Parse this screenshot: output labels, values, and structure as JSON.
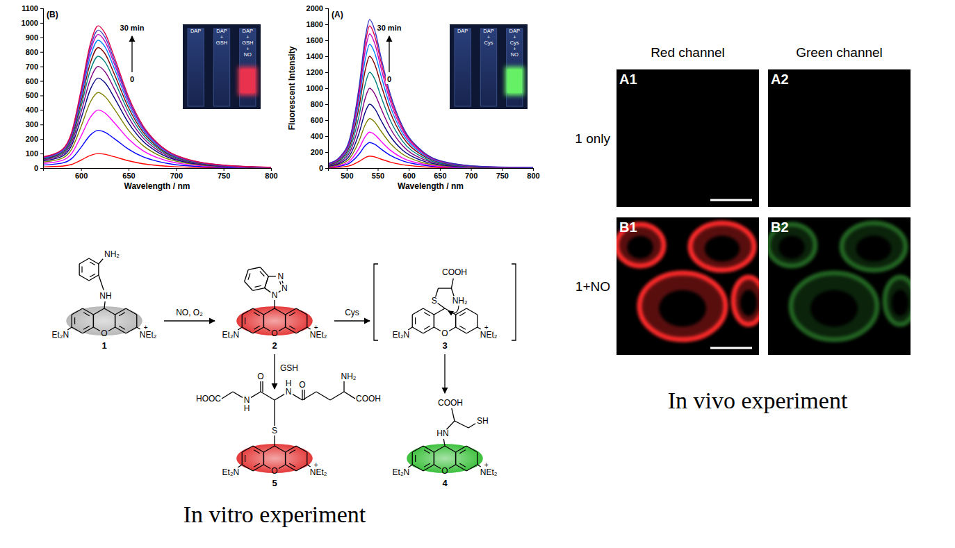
{
  "chart_data": [
    {
      "type": "line",
      "xlabel": "Wavelength / nm",
      "annotations": [
        "(B)",
        "30 min",
        "0"
      ],
      "x": [
        560,
        580,
        590,
        600,
        610,
        618,
        625,
        635,
        650,
        665,
        680,
        700,
        750,
        800
      ],
      "series": [
        {
          "color": "#ff0000",
          "values": [
            8,
            13,
            25,
            55,
            88,
            100,
            95,
            78,
            50,
            30,
            18,
            9,
            2,
            1
          ]
        },
        {
          "color": "#0000ff",
          "values": [
            21,
            34,
            65,
            143,
            229,
            260,
            247,
            203,
            130,
            78,
            47,
            23,
            5,
            1
          ]
        },
        {
          "color": "#ff00ff",
          "values": [
            32,
            52,
            100,
            220,
            352,
            400,
            380,
            312,
            200,
            120,
            72,
            36,
            8,
            2
          ]
        },
        {
          "color": "#808000",
          "values": [
            42,
            68,
            130,
            286,
            458,
            520,
            494,
            406,
            260,
            156,
            94,
            47,
            10,
            3
          ]
        },
        {
          "color": "#000080",
          "values": [
            50,
            81,
            155,
            341,
            546,
            620,
            589,
            484,
            310,
            186,
            112,
            56,
            12,
            3
          ]
        },
        {
          "color": "#800080",
          "values": [
            56,
            91,
            175,
            385,
            616,
            700,
            665,
            546,
            350,
            210,
            126,
            63,
            14,
            4
          ]
        },
        {
          "color": "#008080",
          "values": [
            62,
            100,
            193,
            424,
            678,
            770,
            732,
            601,
            385,
            231,
            139,
            69,
            15,
            4
          ]
        },
        {
          "color": "#800000",
          "values": [
            66,
            108,
            208,
            457,
            730,
            830,
            789,
            647,
            415,
            249,
            149,
            75,
            17,
            4
          ]
        },
        {
          "color": "#0080ff",
          "values": [
            70,
            114,
            220,
            484,
            774,
            880,
            836,
            686,
            440,
            264,
            158,
            79,
            18,
            4
          ]
        },
        {
          "color": "#c000c0",
          "values": [
            74,
            120,
            230,
            506,
            810,
            920,
            874,
            718,
            460,
            276,
            166,
            83,
            18,
            5
          ]
        },
        {
          "color": "#4040c0",
          "values": [
            76,
            124,
            238,
            523,
            836,
            950,
            903,
            741,
            475,
            285,
            171,
            86,
            19,
            5
          ]
        },
        {
          "color": "#e0004a",
          "values": [
            78,
            127,
            245,
            539,
            862,
            980,
            931,
            764,
            490,
            294,
            176,
            88,
            20,
            5
          ]
        }
      ],
      "xlim": [
        560,
        800
      ],
      "ylim": [
        0,
        1100
      ],
      "xticks": [
        600,
        650,
        700,
        750,
        800
      ],
      "yticks": [
        0,
        100,
        200,
        300,
        400,
        500,
        600,
        700,
        800,
        900,
        1000,
        1100
      ],
      "inset": {
        "labels": [
          [
            "DAP"
          ],
          [
            "DAP",
            "+",
            "GSH"
          ],
          [
            "DAP",
            "+",
            "GSH",
            "+",
            "NO"
          ]
        ],
        "color": "#e8324e"
      }
    },
    {
      "type": "line",
      "xlabel": "Wavelength / nm",
      "ylabel": "Fluorescent Intensity",
      "annotations": [
        "(A)",
        "30 min",
        "0"
      ],
      "x": [
        470,
        490,
        505,
        520,
        530,
        537,
        545,
        555,
        570,
        590,
        620,
        660,
        720,
        800
      ],
      "series": [
        {
          "color": "#ff0000",
          "values": [
            5,
            12,
            30,
            83,
            132,
            150,
            140,
            113,
            75,
            42,
            18,
            6,
            2,
            0
          ]
        },
        {
          "color": "#0000ff",
          "values": [
            10,
            26,
            64,
            176,
            282,
            320,
            298,
            240,
            160,
            90,
            38,
            13,
            3,
            1
          ]
        },
        {
          "color": "#ff00ff",
          "values": [
            14,
            36,
            90,
            248,
            396,
            450,
            419,
            338,
            225,
            126,
            54,
            18,
            5,
            1
          ]
        },
        {
          "color": "#808000",
          "values": [
            19,
            50,
            124,
            341,
            546,
            620,
            577,
            465,
            310,
            174,
            74,
            25,
            6,
            2
          ]
        },
        {
          "color": "#000080",
          "values": [
            24,
            64,
            160,
            440,
            704,
            800,
            744,
            600,
            400,
            224,
            96,
            32,
            8,
            2
          ]
        },
        {
          "color": "#800080",
          "values": [
            30,
            80,
            200,
            550,
            880,
            1000,
            930,
            750,
            500,
            280,
            120,
            40,
            10,
            3
          ]
        },
        {
          "color": "#008080",
          "values": [
            36,
            96,
            240,
            660,
            1056,
            1200,
            1116,
            900,
            600,
            336,
            144,
            48,
            12,
            4
          ]
        },
        {
          "color": "#800000",
          "values": [
            42,
            112,
            280,
            770,
            1232,
            1400,
            1302,
            1050,
            700,
            392,
            168,
            56,
            14,
            4
          ]
        },
        {
          "color": "#0080ff",
          "values": [
            47,
            124,
            310,
            853,
            1364,
            1550,
            1442,
            1163,
            775,
            434,
            186,
            62,
            16,
            5
          ]
        },
        {
          "color": "#c000c0",
          "values": [
            50,
            134,
            336,
            924,
            1478,
            1680,
            1562,
            1260,
            840,
            470,
            202,
            67,
            17,
            5
          ]
        },
        {
          "color": "#e0004a",
          "values": [
            53,
            142,
            356,
            979,
            1566,
            1780,
            1655,
            1335,
            890,
            498,
            214,
            71,
            18,
            5
          ]
        },
        {
          "color": "#3030c0",
          "values": [
            56,
            149,
            372,
            1023,
            1637,
            1860,
            1730,
            1395,
            930,
            521,
            223,
            74,
            19,
            6
          ]
        }
      ],
      "xlim": [
        470,
        800
      ],
      "ylim": [
        0,
        2000
      ],
      "xticks": [
        500,
        550,
        600,
        650,
        700,
        750,
        800
      ],
      "yticks": [
        0,
        200,
        400,
        600,
        800,
        1000,
        1200,
        1400,
        1600,
        1800,
        2000
      ],
      "inset": {
        "labels": [
          [
            "DAP"
          ],
          [
            "DAP",
            "+",
            "Cys"
          ],
          [
            "DAP",
            "+",
            "Cys",
            "+",
            "NO"
          ]
        ],
        "color": "#66f066"
      }
    }
  ],
  "scheme": {
    "caption": "In vitro experiment",
    "reagents": [
      "NO, O₂",
      "Cys",
      "GSH"
    ],
    "compounds": [
      {
        "label": "1",
        "left": "Et₂N",
        "right": "NEt₂",
        "charge": "+",
        "bridge": "O",
        "color": "#b8b8b8",
        "groups": [
          "NH₂",
          "NH"
        ]
      },
      {
        "label": "2",
        "left": "Et₂N",
        "right": "NEt₂",
        "charge": "+",
        "bridge": "O",
        "color": "#e53a3a",
        "groups": [
          "N",
          "N",
          "N"
        ]
      },
      {
        "label": "3",
        "left": "Et₂N",
        "right": "NEt₂",
        "charge": "+",
        "bridge": "O",
        "groups": [
          "COOH",
          "S",
          "NH₂"
        ]
      },
      {
        "label": "4",
        "left": "Et₂N",
        "right": "NEt₂",
        "charge": "+",
        "bridge": "O",
        "color": "#3cc03c",
        "groups": [
          "COOH",
          "HN",
          "SH"
        ]
      },
      {
        "label": "5",
        "left": "Et₂N",
        "right": "NEt₂",
        "charge": "+",
        "bridge": "O",
        "color": "#e53a3a",
        "groups": [
          "HOOC",
          "N",
          "H",
          "O",
          "N",
          "H",
          "O",
          "NH₂",
          "COOH",
          "S"
        ]
      }
    ]
  },
  "microscopy": {
    "caption": "In vivo experiment",
    "columns": [
      "Red channel",
      "Green channel"
    ],
    "rows": [
      {
        "label": "1 only",
        "panels": [
          "A1",
          "A2"
        ]
      },
      {
        "label": "1+NO",
        "panels": [
          "B1",
          "B2"
        ]
      }
    ]
  }
}
